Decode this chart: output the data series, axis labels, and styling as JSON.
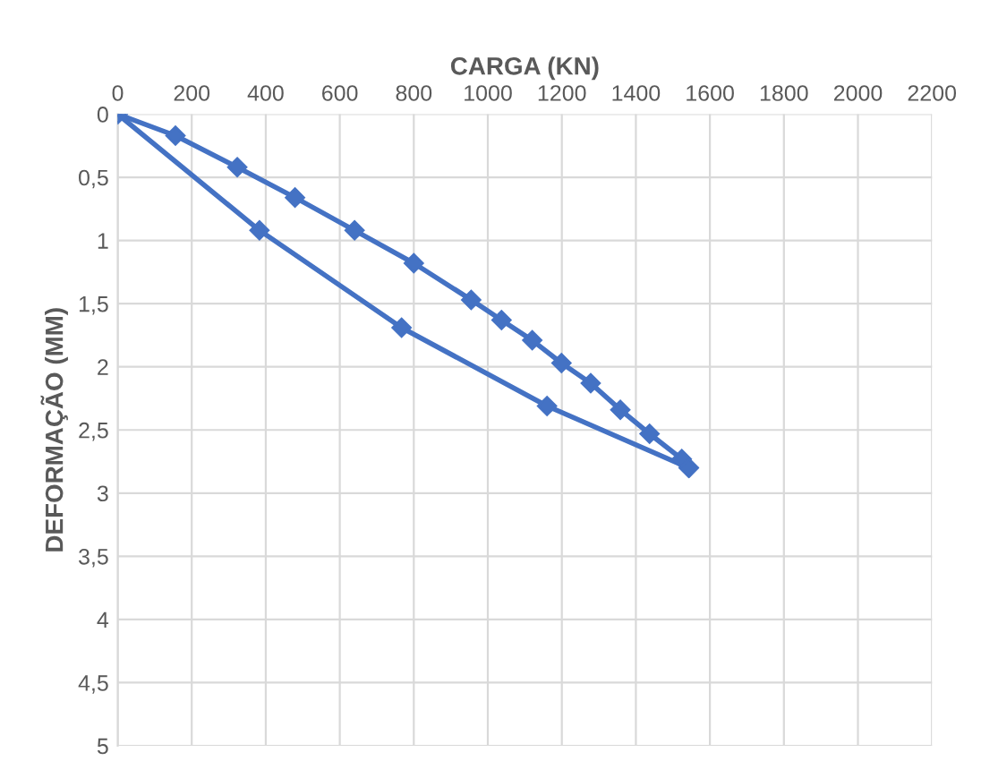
{
  "chart_data": {
    "type": "line",
    "xlabel": "CARGA (KN)",
    "ylabel": "DEFORMAÇÃO (MM)",
    "xlim": [
      0,
      2200
    ],
    "xticks": [
      0,
      200,
      400,
      600,
      800,
      1000,
      1200,
      1400,
      1600,
      1800,
      2000,
      2200
    ],
    "ylim": [
      5,
      0
    ],
    "yticks": [
      0,
      {
        "value": 0.5,
        "label": "0,5"
      },
      1,
      {
        "value": 1.5,
        "label": "1,5"
      },
      2,
      {
        "value": 2.5,
        "label": "2,5"
      },
      3,
      {
        "value": 3.5,
        "label": "3,5"
      },
      4,
      {
        "value": 4.5,
        "label": "4,5"
      },
      5
    ],
    "grid": true,
    "legend": false,
    "marker": "diamond",
    "line_style": "solid",
    "series": [
      {
        "color": "#4472c4",
        "x": [
          0,
          156,
          323,
          479,
          640,
          800,
          955,
          1037,
          1120,
          1199,
          1278,
          1358,
          1437,
          1524,
          1543
        ],
        "values": [
          0,
          0.17,
          0.42,
          0.66,
          0.92,
          1.18,
          1.47,
          1.63,
          1.79,
          1.97,
          2.13,
          2.34,
          2.53,
          2.73,
          2.8
        ]
      },
      {
        "color": "#4472c4",
        "x": [
          0,
          383,
          767,
          1160,
          1543
        ],
        "values": [
          0,
          0.92,
          1.69,
          2.31,
          2.8
        ]
      }
    ]
  }
}
